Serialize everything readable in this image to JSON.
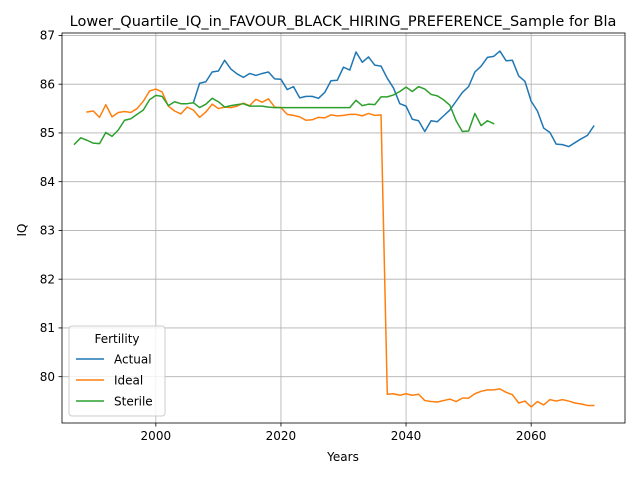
{
  "chart_data": {
    "type": "line",
    "title": "Lower_Quartile_IQ_in_FAVOUR_BLACK_HIRING_PREFERENCE_Sample for Bla",
    "xlabel": "Years",
    "ylabel": "IQ",
    "xlim": [
      1985,
      2075
    ],
    "ylim": [
      79.05,
      87.05
    ],
    "xticks": [
      2000,
      2020,
      2040,
      2060
    ],
    "yticks": [
      80,
      81,
      82,
      83,
      84,
      85,
      86,
      87
    ],
    "grid": true,
    "legend": {
      "title": "Fertility",
      "placement": "lower-left"
    },
    "series": [
      {
        "name": "Actual",
        "color": "#1f77b4",
        "points": [
          [
            2006,
            85.62
          ],
          [
            2007,
            86.02
          ],
          [
            2008,
            86.05
          ],
          [
            2009,
            86.25
          ],
          [
            2010,
            86.27
          ],
          [
            2011,
            86.49
          ],
          [
            2012,
            86.31
          ],
          [
            2013,
            86.21
          ],
          [
            2014,
            86.14
          ],
          [
            2015,
            86.22
          ],
          [
            2016,
            86.18
          ],
          [
            2017,
            86.22
          ],
          [
            2018,
            86.25
          ],
          [
            2019,
            86.11
          ],
          [
            2020,
            86.1
          ],
          [
            2021,
            85.89
          ],
          [
            2022,
            85.95
          ],
          [
            2023,
            85.72
          ],
          [
            2024,
            85.75
          ],
          [
            2025,
            85.75
          ],
          [
            2026,
            85.71
          ],
          [
            2027,
            85.83
          ],
          [
            2028,
            86.07
          ],
          [
            2029,
            86.08
          ],
          [
            2030,
            86.35
          ],
          [
            2031,
            86.29
          ],
          [
            2032,
            86.66
          ],
          [
            2033,
            86.45
          ],
          [
            2034,
            86.56
          ],
          [
            2035,
            86.39
          ],
          [
            2036,
            86.37
          ],
          [
            2037,
            86.12
          ],
          [
            2038,
            85.92
          ],
          [
            2039,
            85.6
          ],
          [
            2040,
            85.55
          ],
          [
            2041,
            85.28
          ],
          [
            2042,
            85.25
          ],
          [
            2043,
            85.03
          ],
          [
            2044,
            85.25
          ],
          [
            2045,
            85.23
          ],
          [
            2046,
            85.35
          ],
          [
            2047,
            85.47
          ],
          [
            2048,
            85.65
          ],
          [
            2049,
            85.83
          ],
          [
            2050,
            85.95
          ],
          [
            2051,
            86.25
          ],
          [
            2052,
            86.37
          ],
          [
            2053,
            86.55
          ],
          [
            2054,
            86.57
          ],
          [
            2055,
            86.68
          ],
          [
            2056,
            86.48
          ],
          [
            2057,
            86.49
          ],
          [
            2058,
            86.17
          ],
          [
            2059,
            86.06
          ],
          [
            2060,
            85.65
          ],
          [
            2061,
            85.45
          ],
          [
            2062,
            85.1
          ],
          [
            2063,
            85.01
          ],
          [
            2064,
            84.77
          ],
          [
            2065,
            84.76
          ],
          [
            2066,
            84.72
          ],
          [
            2067,
            84.8
          ],
          [
            2068,
            84.88
          ],
          [
            2069,
            84.95
          ],
          [
            2070,
            85.14
          ]
        ]
      },
      {
        "name": "Ideal",
        "color": "#ff7f0e",
        "points": [
          [
            1989,
            85.43
          ],
          [
            1990,
            85.45
          ],
          [
            1991,
            85.32
          ],
          [
            1992,
            85.58
          ],
          [
            1993,
            85.33
          ],
          [
            1994,
            85.42
          ],
          [
            1995,
            85.44
          ],
          [
            1996,
            85.42
          ],
          [
            1997,
            85.5
          ],
          [
            1998,
            85.65
          ],
          [
            1999,
            85.86
          ],
          [
            2000,
            85.9
          ],
          [
            2001,
            85.84
          ],
          [
            2002,
            85.55
          ],
          [
            2003,
            85.45
          ],
          [
            2004,
            85.39
          ],
          [
            2005,
            85.53
          ],
          [
            2006,
            85.47
          ],
          [
            2007,
            85.32
          ],
          [
            2008,
            85.43
          ],
          [
            2009,
            85.59
          ],
          [
            2010,
            85.5
          ],
          [
            2011,
            85.53
          ],
          [
            2012,
            85.52
          ],
          [
            2013,
            85.55
          ],
          [
            2014,
            85.61
          ],
          [
            2015,
            85.56
          ],
          [
            2016,
            85.69
          ],
          [
            2017,
            85.63
          ],
          [
            2018,
            85.7
          ],
          [
            2019,
            85.53
          ],
          [
            2020,
            85.52
          ],
          [
            2021,
            85.38
          ],
          [
            2022,
            85.36
          ],
          [
            2023,
            85.33
          ],
          [
            2024,
            85.26
          ],
          [
            2025,
            85.27
          ],
          [
            2026,
            85.32
          ],
          [
            2027,
            85.31
          ],
          [
            2028,
            85.37
          ],
          [
            2029,
            85.35
          ],
          [
            2030,
            85.36
          ],
          [
            2031,
            85.38
          ],
          [
            2032,
            85.38
          ],
          [
            2033,
            85.35
          ],
          [
            2034,
            85.4
          ],
          [
            2035,
            85.36
          ],
          [
            2036,
            85.37
          ],
          [
            2037,
            79.64
          ],
          [
            2038,
            79.65
          ],
          [
            2039,
            79.62
          ],
          [
            2040,
            79.65
          ],
          [
            2041,
            79.62
          ],
          [
            2042,
            79.64
          ],
          [
            2043,
            79.51
          ],
          [
            2044,
            79.49
          ],
          [
            2045,
            79.48
          ],
          [
            2046,
            79.51
          ],
          [
            2047,
            79.54
          ],
          [
            2048,
            79.49
          ],
          [
            2049,
            79.56
          ],
          [
            2050,
            79.56
          ],
          [
            2051,
            79.65
          ],
          [
            2052,
            79.7
          ],
          [
            2053,
            79.73
          ],
          [
            2054,
            79.73
          ],
          [
            2055,
            79.75
          ],
          [
            2056,
            79.68
          ],
          [
            2057,
            79.63
          ],
          [
            2058,
            79.46
          ],
          [
            2059,
            79.5
          ],
          [
            2060,
            79.38
          ],
          [
            2061,
            79.49
          ],
          [
            2062,
            79.42
          ],
          [
            2063,
            79.53
          ],
          [
            2064,
            79.5
          ],
          [
            2065,
            79.53
          ],
          [
            2066,
            79.5
          ],
          [
            2067,
            79.46
          ],
          [
            2068,
            79.44
          ],
          [
            2069,
            79.41
          ],
          [
            2070,
            79.41
          ]
        ]
      },
      {
        "name": "Sterile",
        "color": "#2ca02c",
        "points": [
          [
            1987,
            84.77
          ],
          [
            1988,
            84.9
          ],
          [
            1989,
            84.85
          ],
          [
            1990,
            84.79
          ],
          [
            1991,
            84.78
          ],
          [
            1992,
            85.01
          ],
          [
            1993,
            84.93
          ],
          [
            1994,
            85.06
          ],
          [
            1995,
            85.26
          ],
          [
            1996,
            85.29
          ],
          [
            1997,
            85.38
          ],
          [
            1998,
            85.47
          ],
          [
            1999,
            85.68
          ],
          [
            2000,
            85.77
          ],
          [
            2001,
            85.75
          ],
          [
            2002,
            85.56
          ],
          [
            2003,
            85.64
          ],
          [
            2004,
            85.6
          ],
          [
            2005,
            85.6
          ],
          [
            2006,
            85.62
          ],
          [
            2007,
            85.52
          ],
          [
            2008,
            85.59
          ],
          [
            2009,
            85.71
          ],
          [
            2010,
            85.64
          ],
          [
            2011,
            85.53
          ],
          [
            2012,
            85.56
          ],
          [
            2013,
            85.58
          ],
          [
            2014,
            85.6
          ],
          [
            2015,
            85.55
          ],
          [
            2016,
            85.55
          ],
          [
            2017,
            85.55
          ],
          [
            2018,
            85.53
          ],
          [
            2019,
            85.52
          ],
          [
            2020,
            85.52
          ],
          [
            2021,
            85.52
          ],
          [
            2022,
            85.52
          ],
          [
            2023,
            85.52
          ],
          [
            2024,
            85.52
          ],
          [
            2025,
            85.52
          ],
          [
            2026,
            85.52
          ],
          [
            2027,
            85.52
          ],
          [
            2028,
            85.52
          ],
          [
            2029,
            85.52
          ],
          [
            2030,
            85.52
          ],
          [
            2031,
            85.52
          ],
          [
            2032,
            85.67
          ],
          [
            2033,
            85.56
          ],
          [
            2034,
            85.59
          ],
          [
            2035,
            85.58
          ],
          [
            2036,
            85.74
          ],
          [
            2037,
            85.74
          ],
          [
            2038,
            85.78
          ],
          [
            2039,
            85.85
          ],
          [
            2040,
            85.94
          ],
          [
            2041,
            85.85
          ],
          [
            2042,
            85.95
          ],
          [
            2043,
            85.9
          ],
          [
            2044,
            85.79
          ],
          [
            2045,
            85.76
          ],
          [
            2046,
            85.68
          ],
          [
            2047,
            85.57
          ],
          [
            2048,
            85.25
          ],
          [
            2049,
            85.03
          ],
          [
            2050,
            85.04
          ],
          [
            2051,
            85.4
          ],
          [
            2052,
            85.15
          ],
          [
            2053,
            85.25
          ],
          [
            2054,
            85.19
          ]
        ]
      }
    ]
  }
}
